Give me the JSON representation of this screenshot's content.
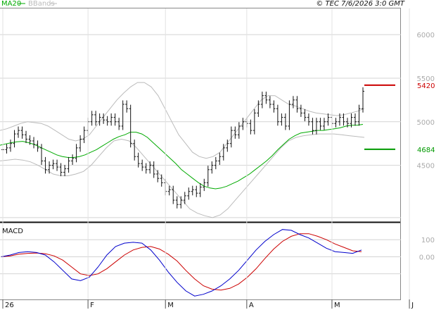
{
  "header": {
    "legend": [
      {
        "label": "MA20",
        "color": "#00aa00"
      },
      {
        "label": "BBands",
        "color": "#bbbbbb"
      }
    ],
    "copyright": "© TEC 7/6/2026 3:0 GMT"
  },
  "colors": {
    "price": "#111111",
    "ma20": "#00aa00",
    "bbands": "#bbbbbb",
    "macd": "#0000cc",
    "signal": "#cc0000",
    "resistance": "#cc0000",
    "support": "#009900",
    "grid": "#d4d4d4"
  },
  "chart_data": [
    {
      "type": "ohlc",
      "title": "",
      "y_tick_labels": [
        "6000",
        "5500",
        "5000",
        "4500"
      ],
      "ylim": [
        3850,
        6300
      ],
      "x_tick_labels": [
        "26",
        "F",
        "M",
        "A",
        "M",
        "J"
      ],
      "x_tick_index": [
        1,
        23,
        43,
        64,
        86,
        106
      ],
      "levels": [
        {
          "name": "resistance",
          "value": 5420,
          "label": "5420"
        },
        {
          "name": "support",
          "value": 4684,
          "label": "4684"
        }
      ],
      "series": [
        {
          "name": "Price",
          "values": [
            4680,
            4700,
            4750,
            4860,
            4900,
            4850,
            4800,
            4780,
            4740,
            4700,
            4550,
            4450,
            4500,
            4520,
            4480,
            4420,
            4460,
            4550,
            4580,
            4700,
            4800,
            4900,
            5000,
            5080,
            5000,
            5050,
            5020,
            5000,
            5050,
            5000,
            4950,
            5200,
            5150,
            4750,
            4600,
            4520,
            4480,
            4450,
            4500,
            4400,
            4350,
            4300,
            4200,
            4220,
            4100,
            4050,
            4100,
            4150,
            4200,
            4220,
            4180,
            4250,
            4300,
            4450,
            4500,
            4550,
            4600,
            4700,
            4750,
            4900,
            4850,
            4950,
            5000,
            4980,
            4900,
            5100,
            5200,
            5300,
            5250,
            5200,
            5150,
            5000,
            5050,
            4950,
            5200,
            5250,
            5150,
            5100,
            5050,
            5000,
            4900,
            5000,
            4950,
            5000,
            5050,
            4980,
            5000,
            5050,
            5000,
            4980,
            5050,
            5000,
            5150,
            5350
          ]
        },
        {
          "name": "MA20",
          "values": [
            4730,
            4745,
            4760,
            4770,
            4775,
            4760,
            4740,
            4710,
            4680,
            4650,
            4620,
            4600,
            4590,
            4590,
            4600,
            4620,
            4650,
            4680,
            4720,
            4760,
            4800,
            4830,
            4850,
            4880,
            4880,
            4860,
            4820,
            4760,
            4700,
            4640,
            4580,
            4520,
            4450,
            4400,
            4350,
            4300,
            4260,
            4240,
            4230,
            4240,
            4260,
            4290,
            4320,
            4360,
            4400,
            4450,
            4500,
            4550,
            4610,
            4680,
            4740,
            4800,
            4840,
            4870,
            4880,
            4890,
            4900,
            4900,
            4910,
            4920,
            4930,
            4950,
            4960,
            4960,
            4970
          ]
        },
        {
          "name": "BBands Upper",
          "values": [
            4900,
            4920,
            4950,
            4980,
            5000,
            4990,
            4980,
            4950,
            4900,
            4850,
            4800,
            4780,
            4800,
            4850,
            4950,
            5050,
            5150,
            5250,
            5330,
            5400,
            5450,
            5450,
            5400,
            5300,
            5150,
            5000,
            4850,
            4750,
            4650,
            4600,
            4580,
            4600,
            4650,
            4750,
            4850,
            4950,
            5050,
            5150,
            5250,
            5300,
            5300,
            5250,
            5200,
            5180,
            5150,
            5120,
            5100,
            5090,
            5080,
            5070,
            5080,
            5100,
            5120,
            5150
          ]
        },
        {
          "name": "BBands Lower",
          "values": [
            4550,
            4560,
            4570,
            4560,
            4540,
            4500,
            4450,
            4400,
            4380,
            4380,
            4400,
            4430,
            4500,
            4600,
            4700,
            4780,
            4800,
            4780,
            4700,
            4600,
            4500,
            4400,
            4300,
            4200,
            4100,
            4000,
            3950,
            3920,
            3900,
            3930,
            4000,
            4100,
            4200,
            4300,
            4400,
            4500,
            4600,
            4700,
            4780,
            4820,
            4840,
            4850,
            4860,
            4860,
            4860,
            4850,
            4840,
            4830,
            4820
          ]
        }
      ]
    },
    {
      "type": "line",
      "title": "MACD",
      "y_tick_labels": [
        "100",
        "0.00"
      ],
      "ylim": [
        -250,
        200
      ],
      "series": [
        {
          "name": "MACD",
          "values": [
            0,
            10,
            25,
            30,
            25,
            10,
            -30,
            -80,
            -130,
            -140,
            -120,
            -60,
            10,
            60,
            80,
            85,
            80,
            40,
            -20,
            -90,
            -150,
            -200,
            -230,
            -220,
            -200,
            -170,
            -130,
            -80,
            -20,
            40,
            90,
            130,
            160,
            155,
            130,
            110,
            80,
            50,
            30,
            25,
            20,
            40
          ]
        },
        {
          "name": "Signal",
          "values": [
            0,
            5,
            15,
            20,
            22,
            18,
            5,
            -20,
            -60,
            -100,
            -110,
            -100,
            -70,
            -30,
            10,
            40,
            55,
            60,
            45,
            15,
            -25,
            -80,
            -130,
            -170,
            -190,
            -195,
            -185,
            -160,
            -120,
            -70,
            -10,
            45,
            90,
            120,
            135,
            135,
            120,
            100,
            75,
            55,
            35,
            30
          ]
        }
      ]
    }
  ]
}
